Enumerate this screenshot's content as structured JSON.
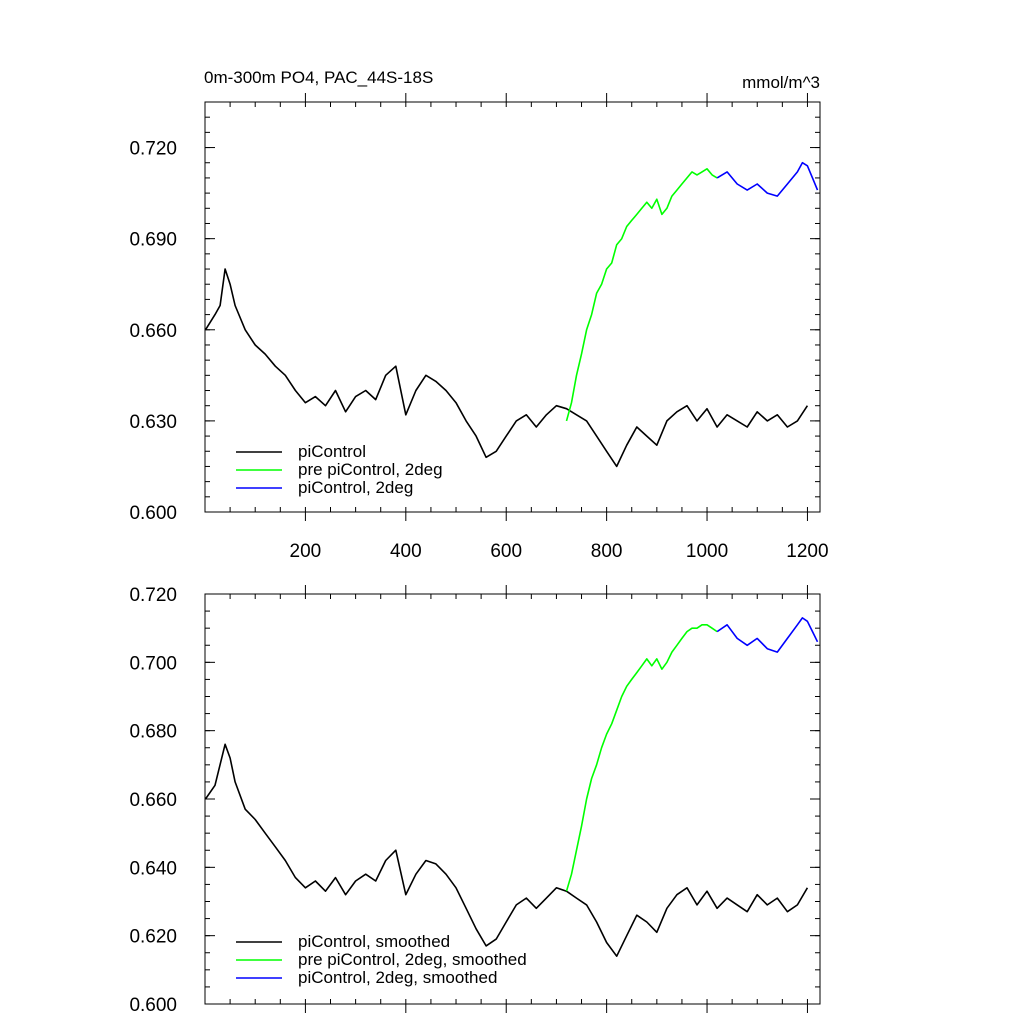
{
  "header": {
    "title": "0m-300m PO4, PAC_44S-18S",
    "units": "mmol/m^3"
  },
  "colors": {
    "piControl": "#000000",
    "pre_piControl_2deg": "#00ff00",
    "piControl_2deg": "#0000ff"
  },
  "chart_data": [
    {
      "type": "line",
      "panel": "top",
      "xlim": [
        0,
        1225
      ],
      "ylim": [
        0.6,
        0.735
      ],
      "x_ticks": [
        200,
        400,
        600,
        800,
        1000,
        1200
      ],
      "x_tick_labels": [
        "200",
        "400",
        "600",
        "800",
        "1000",
        "1200"
      ],
      "y_ticks": [
        0.6,
        0.63,
        0.66,
        0.69,
        0.72
      ],
      "y_tick_labels": [
        "0.600",
        "0.630",
        "0.660",
        "0.690",
        "0.720"
      ],
      "legend_position": "bottom-left",
      "series": [
        {
          "name": "piControl",
          "color": "#000000",
          "points": [
            [
              1,
              0.66
            ],
            [
              20,
              0.665
            ],
            [
              30,
              0.668
            ],
            [
              40,
              0.68
            ],
            [
              50,
              0.675
            ],
            [
              60,
              0.668
            ],
            [
              80,
              0.66
            ],
            [
              100,
              0.655
            ],
            [
              120,
              0.652
            ],
            [
              140,
              0.648
            ],
            [
              160,
              0.645
            ],
            [
              180,
              0.64
            ],
            [
              200,
              0.636
            ],
            [
              220,
              0.638
            ],
            [
              240,
              0.635
            ],
            [
              260,
              0.64
            ],
            [
              280,
              0.633
            ],
            [
              300,
              0.638
            ],
            [
              320,
              0.64
            ],
            [
              340,
              0.637
            ],
            [
              360,
              0.645
            ],
            [
              380,
              0.648
            ],
            [
              400,
              0.632
            ],
            [
              420,
              0.64
            ],
            [
              440,
              0.645
            ],
            [
              460,
              0.643
            ],
            [
              480,
              0.64
            ],
            [
              500,
              0.636
            ],
            [
              520,
              0.63
            ],
            [
              540,
              0.625
            ],
            [
              560,
              0.618
            ],
            [
              580,
              0.62
            ],
            [
              600,
              0.625
            ],
            [
              620,
              0.63
            ],
            [
              640,
              0.632
            ],
            [
              660,
              0.628
            ],
            [
              680,
              0.632
            ],
            [
              700,
              0.635
            ],
            [
              720,
              0.634
            ],
            [
              740,
              0.632
            ],
            [
              760,
              0.63
            ],
            [
              780,
              0.625
            ],
            [
              800,
              0.62
            ],
            [
              820,
              0.615
            ],
            [
              840,
              0.622
            ],
            [
              860,
              0.628
            ],
            [
              880,
              0.625
            ],
            [
              900,
              0.622
            ],
            [
              920,
              0.63
            ],
            [
              940,
              0.633
            ],
            [
              960,
              0.635
            ],
            [
              980,
              0.63
            ],
            [
              1000,
              0.634
            ],
            [
              1020,
              0.628
            ],
            [
              1040,
              0.632
            ],
            [
              1060,
              0.63
            ],
            [
              1080,
              0.628
            ],
            [
              1100,
              0.633
            ],
            [
              1120,
              0.63
            ],
            [
              1140,
              0.632
            ],
            [
              1160,
              0.628
            ],
            [
              1180,
              0.63
            ],
            [
              1200,
              0.635
            ]
          ]
        },
        {
          "name": "pre piControl, 2deg",
          "color": "#00ff00",
          "points": [
            [
              720,
              0.63
            ],
            [
              730,
              0.636
            ],
            [
              740,
              0.645
            ],
            [
              750,
              0.652
            ],
            [
              760,
              0.66
            ],
            [
              770,
              0.665
            ],
            [
              780,
              0.672
            ],
            [
              790,
              0.675
            ],
            [
              800,
              0.68
            ],
            [
              810,
              0.682
            ],
            [
              820,
              0.688
            ],
            [
              830,
              0.69
            ],
            [
              840,
              0.694
            ],
            [
              850,
              0.696
            ],
            [
              860,
              0.698
            ],
            [
              870,
              0.7
            ],
            [
              880,
              0.702
            ],
            [
              890,
              0.7
            ],
            [
              900,
              0.703
            ],
            [
              910,
              0.698
            ],
            [
              920,
              0.7
            ],
            [
              930,
              0.704
            ],
            [
              940,
              0.706
            ],
            [
              950,
              0.708
            ],
            [
              960,
              0.71
            ],
            [
              970,
              0.712
            ],
            [
              980,
              0.711
            ],
            [
              990,
              0.712
            ],
            [
              1000,
              0.713
            ],
            [
              1010,
              0.711
            ],
            [
              1020,
              0.71
            ]
          ]
        },
        {
          "name": "piControl, 2deg",
          "color": "#0000ff",
          "points": [
            [
              1020,
              0.71
            ],
            [
              1040,
              0.712
            ],
            [
              1060,
              0.708
            ],
            [
              1080,
              0.706
            ],
            [
              1100,
              0.708
            ],
            [
              1120,
              0.705
            ],
            [
              1140,
              0.704
            ],
            [
              1160,
              0.708
            ],
            [
              1180,
              0.712
            ],
            [
              1190,
              0.715
            ],
            [
              1200,
              0.714
            ],
            [
              1210,
              0.71
            ],
            [
              1220,
              0.706
            ]
          ]
        }
      ]
    },
    {
      "type": "line",
      "panel": "bottom",
      "xlim": [
        0,
        1225
      ],
      "ylim": [
        0.6,
        0.72
      ],
      "x_ticks": [
        200,
        400,
        600,
        800,
        1000,
        1200
      ],
      "x_tick_labels": [],
      "y_ticks": [
        0.6,
        0.62,
        0.64,
        0.66,
        0.68,
        0.7,
        0.72
      ],
      "y_tick_labels": [
        "0.600",
        "0.620",
        "0.640",
        "0.660",
        "0.680",
        "0.700",
        "0.720"
      ],
      "legend_position": "bottom-left",
      "series": [
        {
          "name": "piControl, smoothed",
          "color": "#000000",
          "points": [
            [
              1,
              0.66
            ],
            [
              20,
              0.664
            ],
            [
              40,
              0.676
            ],
            [
              50,
              0.672
            ],
            [
              60,
              0.665
            ],
            [
              80,
              0.657
            ],
            [
              100,
              0.654
            ],
            [
              120,
              0.65
            ],
            [
              140,
              0.646
            ],
            [
              160,
              0.642
            ],
            [
              180,
              0.637
            ],
            [
              200,
              0.634
            ],
            [
              220,
              0.636
            ],
            [
              240,
              0.633
            ],
            [
              260,
              0.637
            ],
            [
              280,
              0.632
            ],
            [
              300,
              0.636
            ],
            [
              320,
              0.638
            ],
            [
              340,
              0.636
            ],
            [
              360,
              0.642
            ],
            [
              380,
              0.645
            ],
            [
              400,
              0.632
            ],
            [
              420,
              0.638
            ],
            [
              440,
              0.642
            ],
            [
              460,
              0.641
            ],
            [
              480,
              0.638
            ],
            [
              500,
              0.634
            ],
            [
              520,
              0.628
            ],
            [
              540,
              0.622
            ],
            [
              560,
              0.617
            ],
            [
              580,
              0.619
            ],
            [
              600,
              0.624
            ],
            [
              620,
              0.629
            ],
            [
              640,
              0.631
            ],
            [
              660,
              0.628
            ],
            [
              680,
              0.631
            ],
            [
              700,
              0.634
            ],
            [
              720,
              0.633
            ],
            [
              740,
              0.631
            ],
            [
              760,
              0.629
            ],
            [
              780,
              0.624
            ],
            [
              800,
              0.618
            ],
            [
              820,
              0.614
            ],
            [
              840,
              0.62
            ],
            [
              860,
              0.626
            ],
            [
              880,
              0.624
            ],
            [
              900,
              0.621
            ],
            [
              920,
              0.628
            ],
            [
              940,
              0.632
            ],
            [
              960,
              0.634
            ],
            [
              980,
              0.629
            ],
            [
              1000,
              0.633
            ],
            [
              1020,
              0.628
            ],
            [
              1040,
              0.631
            ],
            [
              1060,
              0.629
            ],
            [
              1080,
              0.627
            ],
            [
              1100,
              0.632
            ],
            [
              1120,
              0.629
            ],
            [
              1140,
              0.631
            ],
            [
              1160,
              0.627
            ],
            [
              1180,
              0.629
            ],
            [
              1200,
              0.634
            ]
          ]
        },
        {
          "name": "pre piControl, 2deg, smoothed",
          "color": "#00ff00",
          "points": [
            [
              720,
              0.633
            ],
            [
              730,
              0.638
            ],
            [
              740,
              0.645
            ],
            [
              750,
              0.652
            ],
            [
              760,
              0.66
            ],
            [
              770,
              0.666
            ],
            [
              780,
              0.67
            ],
            [
              790,
              0.675
            ],
            [
              800,
              0.679
            ],
            [
              810,
              0.682
            ],
            [
              820,
              0.686
            ],
            [
              830,
              0.69
            ],
            [
              840,
              0.693
            ],
            [
              850,
              0.695
            ],
            [
              860,
              0.697
            ],
            [
              870,
              0.699
            ],
            [
              880,
              0.701
            ],
            [
              890,
              0.699
            ],
            [
              900,
              0.701
            ],
            [
              910,
              0.698
            ],
            [
              920,
              0.7
            ],
            [
              930,
              0.703
            ],
            [
              940,
              0.705
            ],
            [
              950,
              0.707
            ],
            [
              960,
              0.709
            ],
            [
              970,
              0.71
            ],
            [
              980,
              0.71
            ],
            [
              990,
              0.711
            ],
            [
              1000,
              0.711
            ],
            [
              1010,
              0.71
            ],
            [
              1020,
              0.709
            ]
          ]
        },
        {
          "name": "piControl, 2deg, smoothed",
          "color": "#0000ff",
          "points": [
            [
              1020,
              0.709
            ],
            [
              1040,
              0.711
            ],
            [
              1060,
              0.707
            ],
            [
              1080,
              0.705
            ],
            [
              1100,
              0.707
            ],
            [
              1120,
              0.704
            ],
            [
              1140,
              0.703
            ],
            [
              1160,
              0.707
            ],
            [
              1180,
              0.711
            ],
            [
              1190,
              0.713
            ],
            [
              1200,
              0.712
            ],
            [
              1210,
              0.709
            ],
            [
              1220,
              0.706
            ]
          ]
        }
      ]
    }
  ]
}
